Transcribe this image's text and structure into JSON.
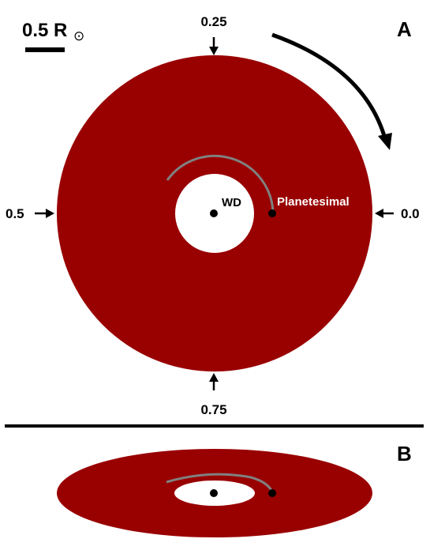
{
  "panel_a": {
    "label": "A",
    "scale_bar": {
      "value": "0.5 R",
      "symbol": "⊙"
    },
    "phases": {
      "top": "0.25",
      "left": "0.5",
      "right": "0.0",
      "bottom": "0.75"
    },
    "wd_label": "WD",
    "planetesimal_label": "Planetesimal"
  },
  "panel_b": {
    "label": "B"
  },
  "colors": {
    "disk": "#990000",
    "orbit_arc": "#808080",
    "ink": "#000000",
    "background": "#ffffff",
    "planetesimal_text": "#ffffff"
  },
  "icons": [
    "rotation-arrow-icon",
    "phase-arrow-icon"
  ]
}
